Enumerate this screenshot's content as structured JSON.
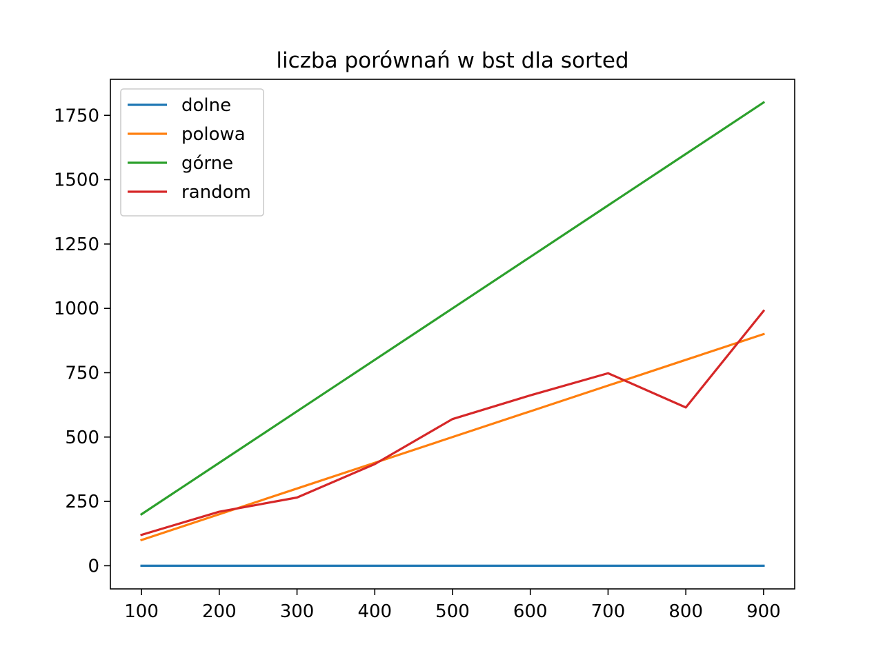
{
  "chart_data": {
    "type": "line",
    "title": "liczba porównań w bst dla sorted",
    "xlabel": "",
    "ylabel": "",
    "x": [
      100,
      200,
      300,
      400,
      500,
      600,
      700,
      800,
      900
    ],
    "xlim": [
      60,
      940
    ],
    "ylim": [
      -90,
      1890
    ],
    "xticks": [
      100,
      200,
      300,
      400,
      500,
      600,
      700,
      800,
      900
    ],
    "yticks": [
      0,
      250,
      500,
      750,
      1000,
      1250,
      1500,
      1750
    ],
    "grid": false,
    "legend_position": "upper-left",
    "series": [
      {
        "name": "dolne",
        "color": "#1f77b4",
        "values": [
          0,
          0,
          0,
          0,
          0,
          0,
          0,
          0,
          0
        ]
      },
      {
        "name": "polowa",
        "color": "#ff7f0e",
        "values": [
          100,
          200,
          300,
          400,
          500,
          600,
          700,
          800,
          900
        ]
      },
      {
        "name": "górne",
        "color": "#2ca02c",
        "values": [
          200,
          400,
          600,
          800,
          1000,
          1200,
          1400,
          1600,
          1800
        ]
      },
      {
        "name": "random",
        "color": "#d62728",
        "values": [
          120,
          210,
          265,
          395,
          570,
          662,
          748,
          615,
          990
        ]
      }
    ]
  }
}
